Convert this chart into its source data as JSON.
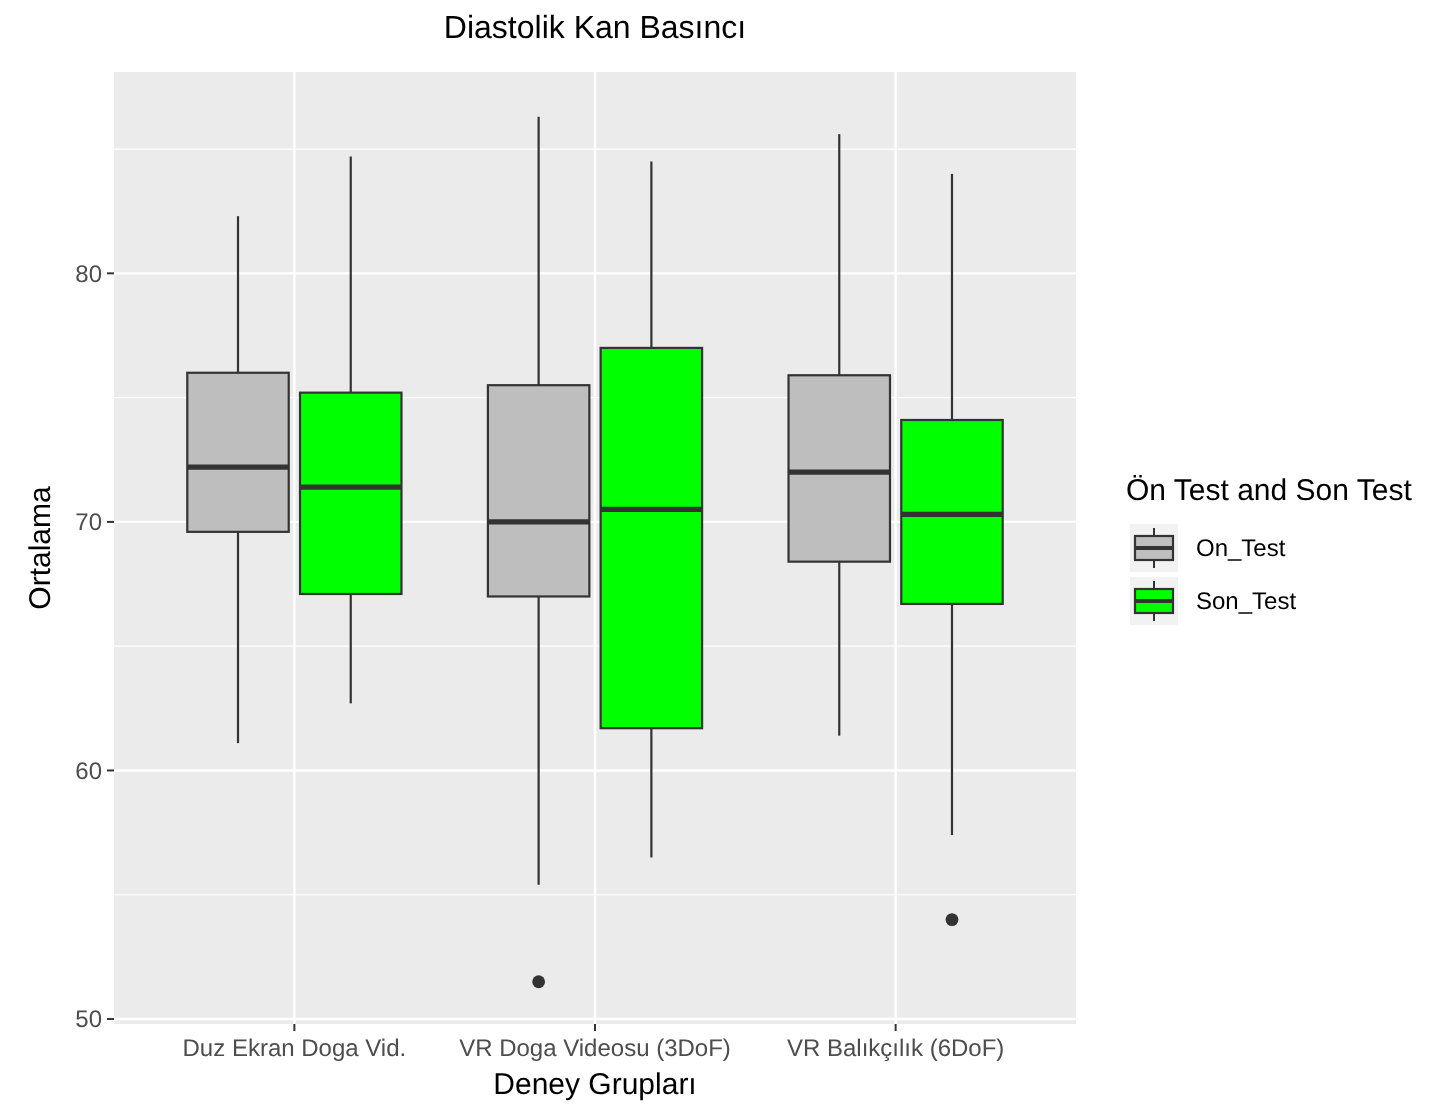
{
  "chart_data": {
    "type": "box",
    "title": "Diastolik Kan Basıncı",
    "xlabel": "Deney Grupları",
    "ylabel": "Ortalama",
    "legend_title": "Ön Test and Son Test",
    "categories": [
      "Duz Ekran Doga Vid.",
      "VR Doga Videosu (3DoF)",
      "VR Balıkçılık (6DoF)"
    ],
    "series": [
      {
        "name": "On_Test",
        "color": "#bebebe",
        "boxes": [
          {
            "low": 61.1,
            "q1": 69.6,
            "median": 72.2,
            "q3": 76.0,
            "high": 82.3
          },
          {
            "low": 55.4,
            "q1": 67.0,
            "median": 70.0,
            "q3": 75.5,
            "high": 86.3,
            "outliers": [
              51.5
            ]
          },
          {
            "low": 61.4,
            "q1": 68.4,
            "median": 72.0,
            "q3": 75.9,
            "high": 85.6
          }
        ]
      },
      {
        "name": "Son_Test",
        "color": "#00ff00",
        "boxes": [
          {
            "low": 62.7,
            "q1": 67.1,
            "median": 71.4,
            "q3": 75.2,
            "high": 84.7
          },
          {
            "low": 56.5,
            "q1": 61.7,
            "median": 70.5,
            "q3": 77.0,
            "high": 84.5
          },
          {
            "low": 57.4,
            "q1": 66.7,
            "median": 70.3,
            "q3": 74.1,
            "high": 84.0,
            "outliers": [
              54.0
            ]
          }
        ]
      }
    ],
    "ylim": [
      49.8,
      88.1
    ],
    "yticks": [
      50,
      60,
      70,
      80
    ],
    "grid": true,
    "legend": "right"
  }
}
